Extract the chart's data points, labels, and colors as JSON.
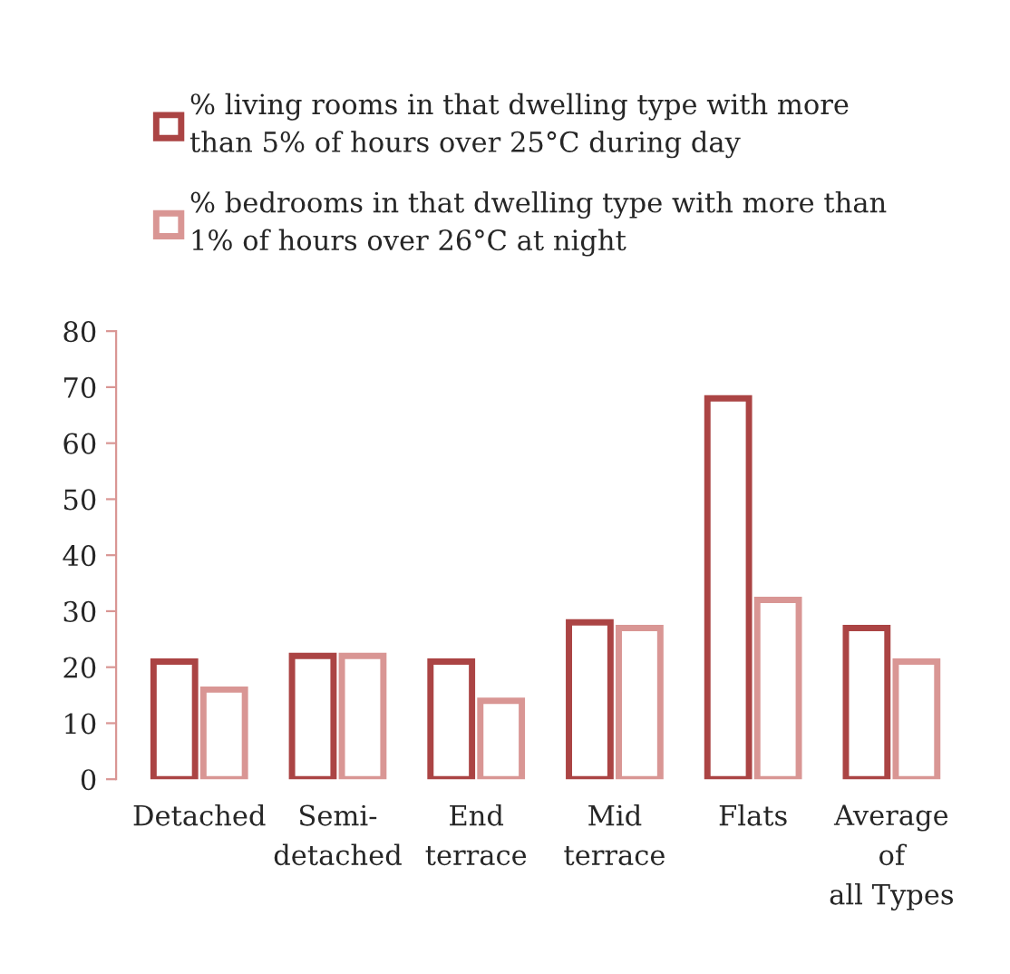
{
  "chart_data": {
    "type": "bar",
    "categories": [
      "Detached",
      "Semi-\ndetached",
      "End\nterrace",
      "Mid\nterrace",
      "Flats",
      "Average\nof\nall Types"
    ],
    "series": [
      {
        "name": "% living rooms in that dwelling type with more than 5% of hours over 25°C during day",
        "color": "#ab4444",
        "values": [
          21,
          22,
          21,
          28,
          68,
          27
        ]
      },
      {
        "name": "% bedrooms in that dwelling type with more than 1% of hours over 26°C at night",
        "color": "#d99694",
        "values": [
          16,
          22,
          14,
          27,
          32,
          21
        ]
      }
    ],
    "ylim": [
      0,
      80
    ],
    "yticks": [
      0,
      10,
      20,
      30,
      40,
      50,
      60,
      70,
      80
    ],
    "grid": false,
    "legend": "top"
  }
}
